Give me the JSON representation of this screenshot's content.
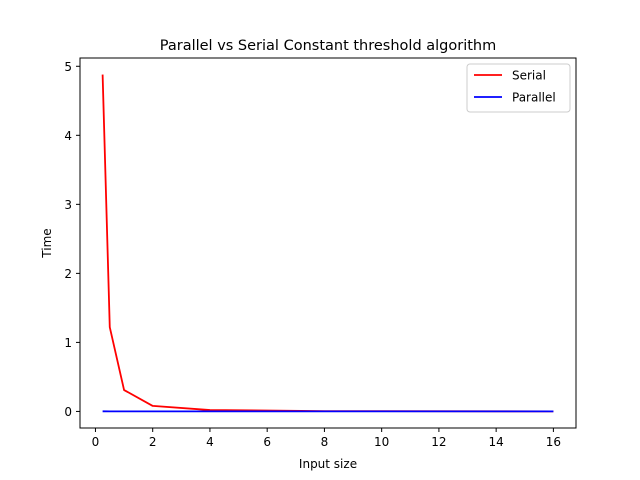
{
  "chart_data": {
    "type": "line",
    "title": "Parallel vs Serial Constant threshold algorithm",
    "xlabel": "Input size",
    "ylabel": "Time",
    "xlim": [
      -0.54,
      16.79
    ],
    "ylim": [
      -0.24,
      5.12
    ],
    "xticks": [
      0,
      2,
      4,
      6,
      8,
      10,
      12,
      14,
      16
    ],
    "yticks": [
      0,
      1,
      2,
      3,
      4,
      5
    ],
    "grid": false,
    "legend_position": "top-right",
    "series": [
      {
        "name": "Serial",
        "color": "#ff0000",
        "x": [
          0.25,
          0.5,
          1,
          2,
          4,
          8,
          16
        ],
        "y": [
          4.88,
          1.22,
          0.31,
          0.08,
          0.02,
          0.005,
          0.001
        ]
      },
      {
        "name": "Parallel",
        "color": "#0000ff",
        "x": [
          0.25,
          0.5,
          1,
          2,
          4,
          8,
          16
        ],
        "y": [
          0.002,
          0.001,
          0.001,
          0.001,
          0.001,
          0.001,
          0.001
        ]
      }
    ]
  }
}
